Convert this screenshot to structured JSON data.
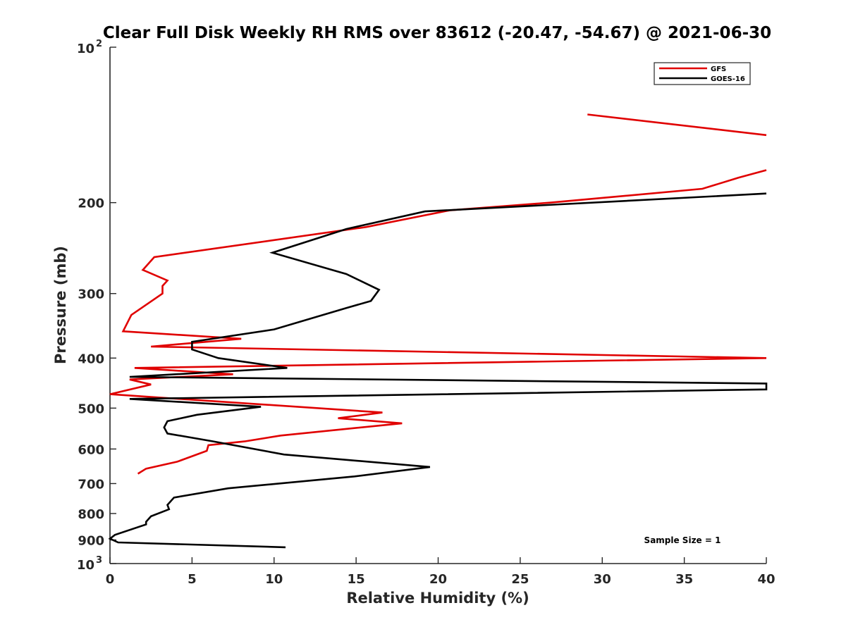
{
  "chart_data": {
    "type": "line",
    "title": "Clear Full Disk Weekly RH RMS over 83612 (-20.47, -54.67) @ 2021-06-30",
    "xlabel": "Relative Humidity (%)",
    "ylabel": "Pressure (mb)",
    "xlim": [
      0,
      40
    ],
    "ylim": [
      100,
      1000
    ],
    "y_scale": "log",
    "y_reversed": true,
    "x_ticks": [
      0,
      5,
      10,
      15,
      20,
      25,
      30,
      35,
      40
    ],
    "x_tick_labels": [
      "0",
      "5",
      "10",
      "15",
      "20",
      "25",
      "30",
      "35",
      "40"
    ],
    "y_ticks": [
      200,
      300,
      400,
      500,
      600,
      700,
      800,
      900
    ],
    "y_tick_labels": [
      "200",
      "300",
      "400",
      "500",
      "600",
      "700",
      "800",
      "900"
    ],
    "y_end_labels": [
      {
        "value": 100,
        "base": "10",
        "exp": "2"
      },
      {
        "value": 1000,
        "base": "10",
        "exp": "3"
      }
    ],
    "grid": false,
    "legend_position": "top-right",
    "annotation": "Sample Size = 1",
    "series": [
      {
        "name": "GFS",
        "color": "#e00000",
        "segments": [
          [
            [
              29.1,
              135
            ],
            [
              40.0,
              148
            ]
          ],
          [
            [
              40.0,
              173
            ],
            [
              38.3,
              179
            ],
            [
              36.1,
              188
            ],
            [
              26.8,
              200
            ],
            [
              20.7,
              207
            ],
            [
              15.6,
              223
            ],
            [
              2.7,
              255
            ],
            [
              2.0,
              270
            ],
            [
              3.5,
              283
            ],
            [
              3.2,
              290
            ],
            [
              3.2,
              300
            ],
            [
              1.3,
              330
            ],
            [
              0.8,
              355
            ],
            [
              8.0,
              367
            ],
            [
              2.5,
              380
            ],
            [
              40.0,
              400
            ],
            [
              1.5,
              418
            ],
            [
              7.5,
              430
            ],
            [
              1.2,
              440
            ],
            [
              2.5,
              450
            ],
            [
              0.0,
              470
            ],
            [
              16.6,
              510
            ],
            [
              13.9,
              523
            ],
            [
              17.8,
              535
            ],
            [
              10.4,
              565
            ],
            [
              8.2,
              580
            ],
            [
              6.0,
              590
            ],
            [
              5.9,
              605
            ],
            [
              4.1,
              635
            ],
            [
              2.2,
              655
            ],
            [
              1.7,
              670
            ]
          ]
        ]
      },
      {
        "name": "GOES-16",
        "color": "#000000",
        "segments": [
          [
            [
              40.0,
              192
            ],
            [
              19.2,
              208
            ],
            [
              14.4,
              225
            ],
            [
              9.9,
              250
            ],
            [
              14.4,
              275
            ],
            [
              16.4,
              295
            ],
            [
              15.9,
              310
            ],
            [
              14.4,
              320
            ],
            [
              10.0,
              352
            ],
            [
              5.0,
              372
            ],
            [
              5.0,
              385
            ],
            [
              6.6,
              400
            ],
            [
              10.8,
              418
            ],
            [
              1.2,
              435
            ],
            [
              40.0,
              448
            ],
            [
              40.0,
              460
            ],
            [
              1.2,
              480
            ],
            [
              9.2,
              497
            ],
            [
              5.3,
              515
            ],
            [
              3.5,
              530
            ],
            [
              3.3,
              545
            ],
            [
              3.5,
              560
            ],
            [
              6.3,
              580
            ],
            [
              10.6,
              615
            ],
            [
              19.5,
              650
            ],
            [
              14.9,
              678
            ],
            [
              7.2,
              715
            ],
            [
              3.9,
              745
            ],
            [
              3.5,
              770
            ],
            [
              3.6,
              785
            ],
            [
              2.5,
              810
            ],
            [
              2.2,
              830
            ],
            [
              2.2,
              840
            ],
            [
              0.3,
              880
            ],
            [
              0.0,
              895
            ],
            [
              0.5,
              910
            ],
            [
              10.7,
              930
            ]
          ]
        ]
      }
    ]
  }
}
